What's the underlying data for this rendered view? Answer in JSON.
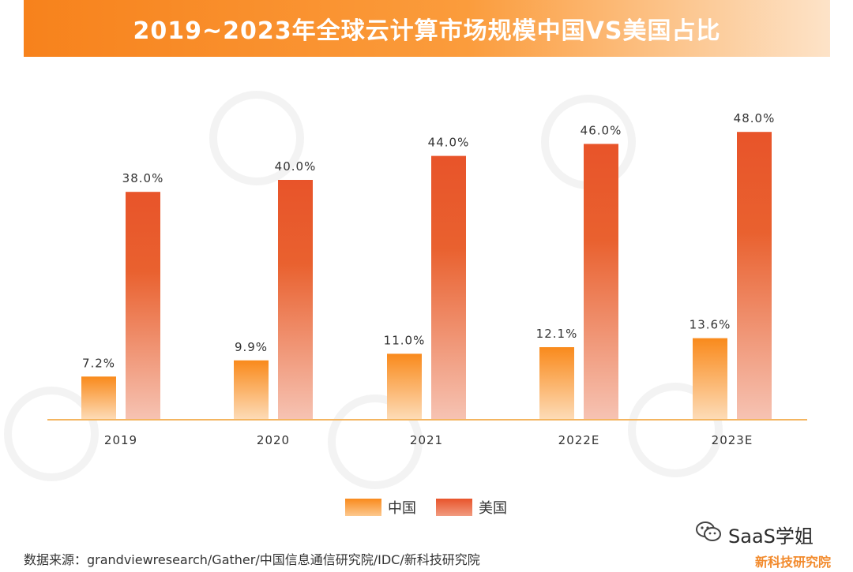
{
  "chart_data": {
    "type": "bar",
    "title": "2019~2023年全球云计算市场规模中国VS美国占比",
    "categories": [
      "2019",
      "2020",
      "2021",
      "2022E",
      "2023E"
    ],
    "series": [
      {
        "name": "中国",
        "values": [
          7.2,
          9.9,
          11.0,
          12.1,
          13.6
        ],
        "labels": [
          "7.2%",
          "9.9%",
          "11.0%",
          "12.1%",
          "13.6%"
        ],
        "color": "#f98a1c"
      },
      {
        "name": "美国",
        "values": [
          38.0,
          40.0,
          44.0,
          46.0,
          48.0
        ],
        "labels": [
          "38.0%",
          "40.0%",
          "44.0%",
          "46.0%",
          "48.0%"
        ],
        "color": "#e8542a"
      }
    ],
    "ylim": [
      0,
      55
    ],
    "xlabel": "",
    "ylabel": "",
    "legend": "bottom-center"
  },
  "footer": {
    "source": "数据来源：grandviewresearch/Gather/中国信息通信研究院/IDC/新科技研究院",
    "brand": "新科技研究院",
    "account": "SaaS学姐",
    "account_icon": "wechat-icon"
  }
}
